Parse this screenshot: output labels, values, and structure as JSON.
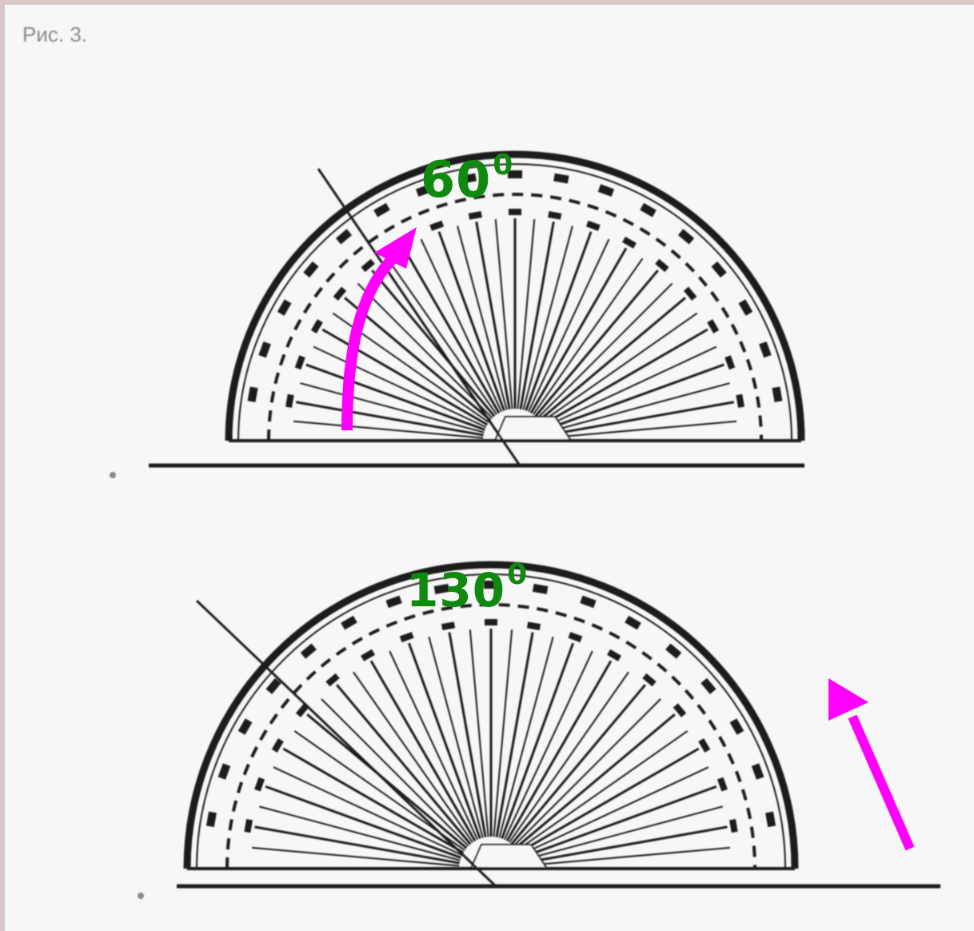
{
  "figure": {
    "caption": "Рис. 3.",
    "protractors": [
      {
        "name": "top",
        "angle_value": "60",
        "angle_sup": "0",
        "measured_angle_deg": 60
      },
      {
        "name": "bottom",
        "angle_value": "130",
        "angle_sup": "0",
        "measured_angle_deg": 130
      }
    ]
  },
  "colors": {
    "angle_text": "#0f8a0f",
    "arrow": "#ff00ff",
    "protractor_ink": "#1a1a1a",
    "background": "#f7f7f7",
    "frame": "#d9c6c6"
  }
}
